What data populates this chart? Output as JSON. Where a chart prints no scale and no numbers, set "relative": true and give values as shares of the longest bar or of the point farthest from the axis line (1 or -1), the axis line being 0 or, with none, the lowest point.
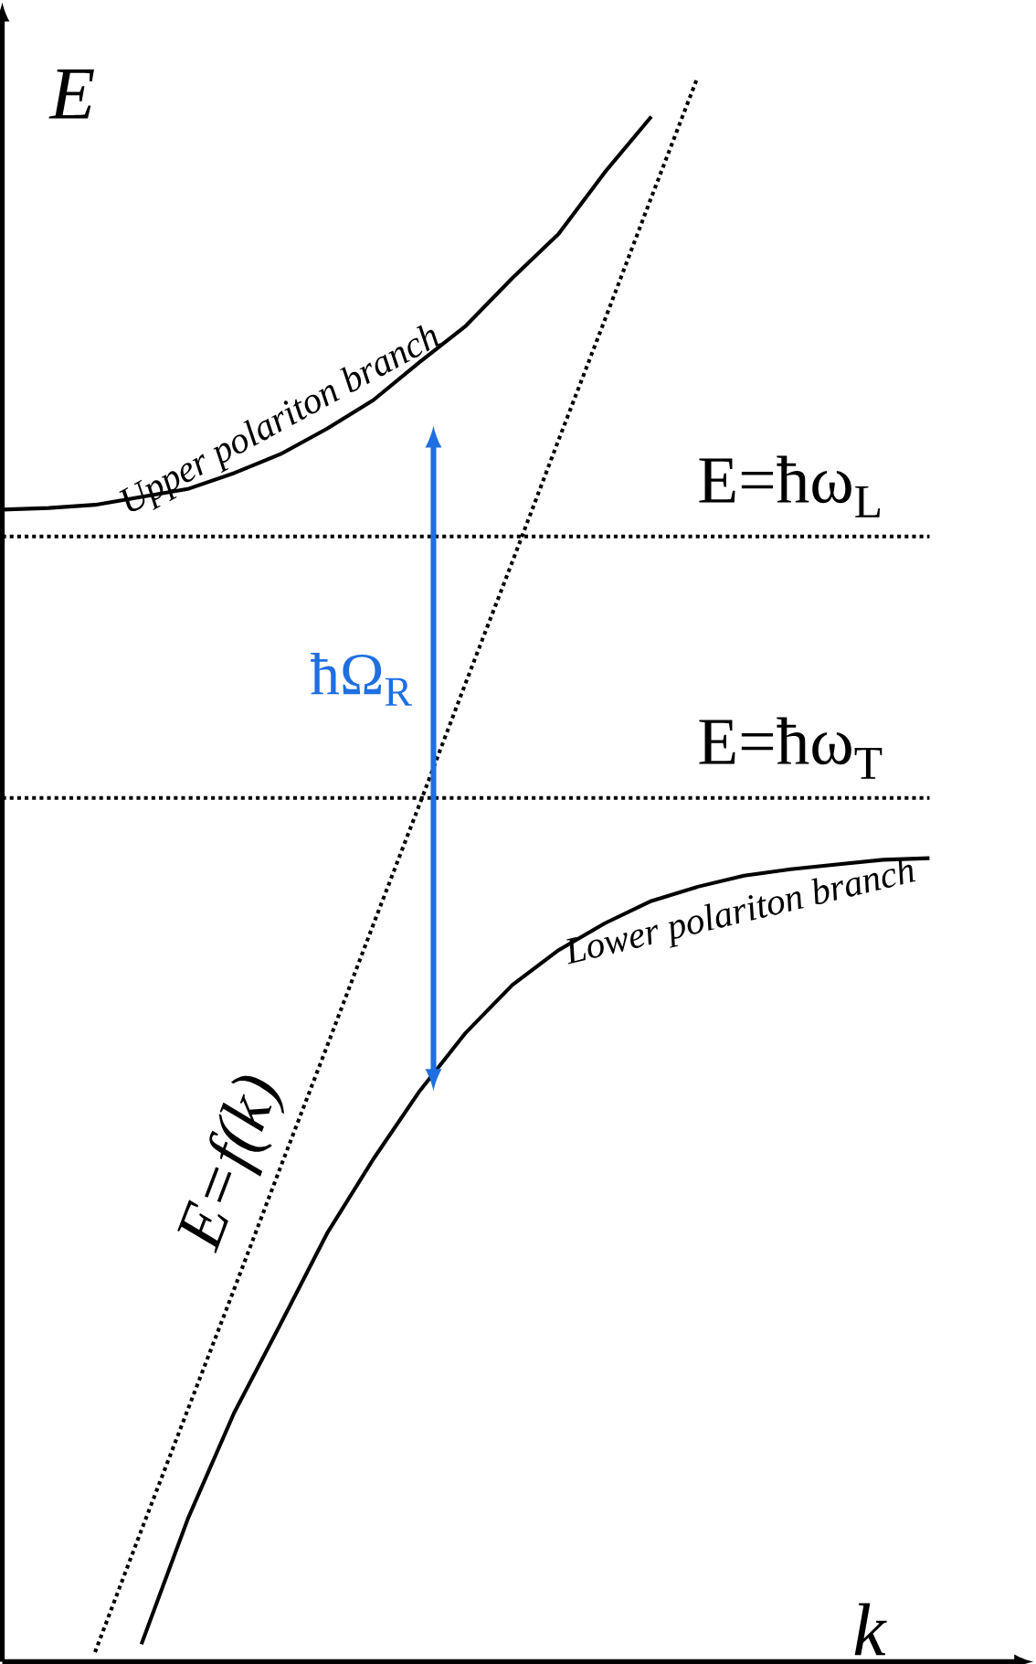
{
  "chart_data": {
    "type": "line",
    "relative": true,
    "xlabel": "k",
    "ylabel": "E",
    "categories": [
      null,
      null,
      null,
      null,
      null,
      null,
      null,
      null,
      null,
      null,
      null,
      null,
      null,
      null,
      null,
      null,
      null,
      null,
      null,
      null,
      null
    ],
    "series": [
      {
        "name": "Upper polariton branch",
        "color": "#000000",
        "line_style": "solid",
        "values": [
          0.727,
          0.728,
          0.73,
          0.735,
          0.74,
          0.75,
          0.762,
          0.778,
          0.796,
          0.82,
          0.843,
          0.873,
          0.901,
          0.94,
          0.975,
          null,
          null,
          null,
          null,
          null,
          null
        ]
      },
      {
        "name": "Lower polariton branch",
        "color": "#000000",
        "line_style": "solid",
        "values": [
          null,
          null,
          null,
          0.011,
          0.09,
          0.157,
          0.213,
          0.27,
          0.317,
          0.36,
          0.397,
          0.427,
          0.449,
          0.466,
          0.48,
          0.489,
          0.496,
          0.5,
          0.503,
          0.506,
          0.507
        ]
      },
      {
        "name": "E=f(k)",
        "color": "#000000",
        "line_style": "dotted",
        "values": [
          null,
          null,
          0.006,
          0.083,
          0.159,
          0.235,
          0.312,
          0.388,
          0.465,
          0.541,
          0.618,
          0.694,
          0.771,
          0.847,
          0.924,
          1.0,
          null,
          null,
          null,
          null,
          null
        ]
      }
    ],
    "ref_lines": [
      {
        "axis": "y",
        "value": 0.71,
        "label": "E=ħω$_{L}$",
        "line_style": "dotted"
      },
      {
        "axis": "y",
        "value": 0.545,
        "label": "E=ħω$_{T}$",
        "line_style": "dotted"
      }
    ],
    "annotations": [
      "ħΩ$_{R}$"
    ]
  }
}
